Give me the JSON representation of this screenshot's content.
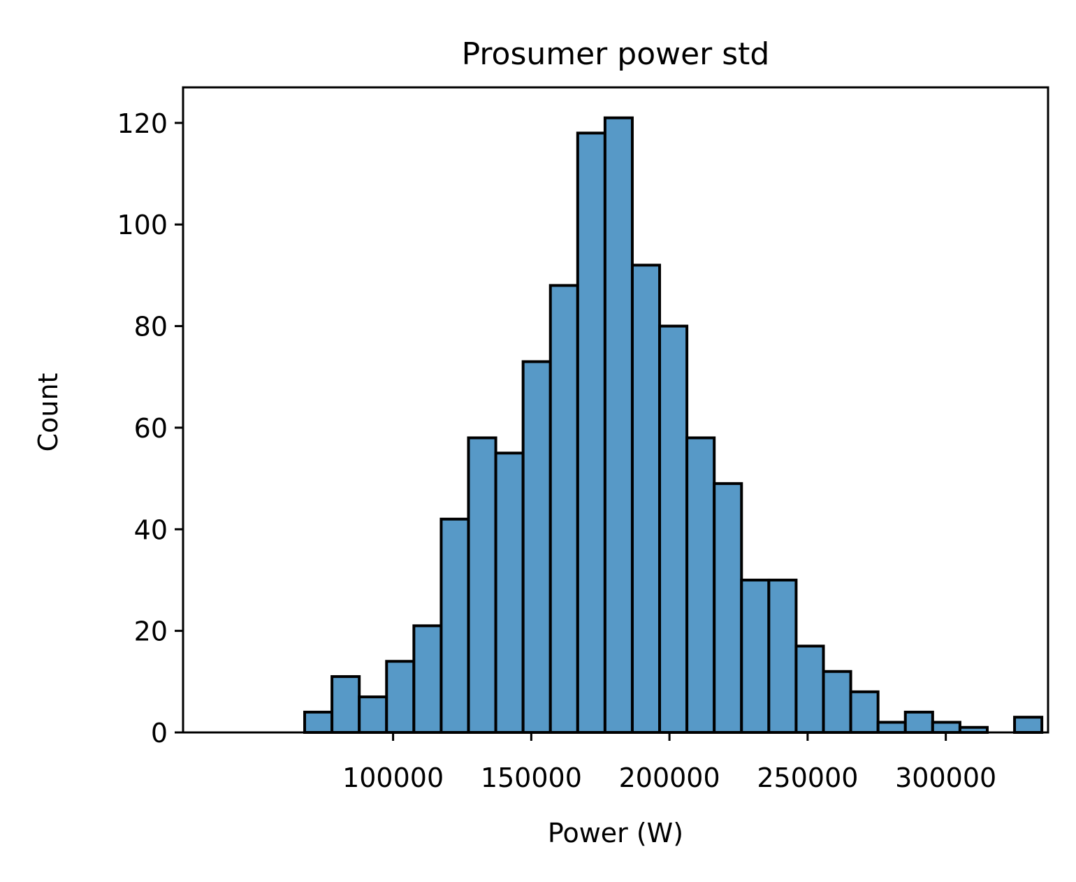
{
  "chart_data": {
    "type": "bar",
    "title": "Prosumer power std",
    "xlabel": "Power (W)",
    "ylabel": "Count",
    "bin_start": 68000,
    "bin_width": 9880,
    "values": [
      4,
      11,
      7,
      14,
      21,
      42,
      58,
      55,
      73,
      88,
      118,
      121,
      92,
      80,
      58,
      49,
      30,
      30,
      17,
      12,
      8,
      2,
      4,
      2,
      1,
      0,
      3
    ],
    "xlim": [
      24000,
      337000
    ],
    "ylim": [
      0,
      127
    ],
    "xticks": [
      100000,
      150000,
      200000,
      250000,
      300000
    ],
    "xtick_labels": [
      "100000",
      "150000",
      "200000",
      "250000",
      "300000"
    ],
    "yticks": [
      0,
      20,
      40,
      60,
      80,
      100,
      120
    ],
    "ytick_labels": [
      "0",
      "20",
      "40",
      "60",
      "80",
      "100",
      "120"
    ],
    "bar_color": "#5799c7",
    "edge_color": "#000000",
    "grid": false,
    "legend": "none"
  }
}
